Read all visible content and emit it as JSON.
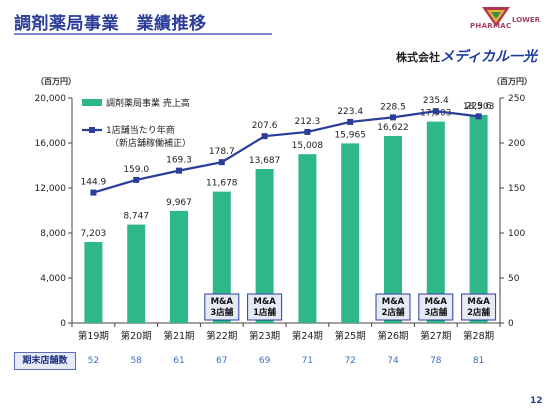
{
  "header": {
    "title": "調剤薬局事業　業績推移",
    "logo_word": "PHARMAC",
    "logo_word_right": "LOWER",
    "company_prefix": "株式会社",
    "company_name": "メディカル一光"
  },
  "units": {
    "left": "（百万円）",
    "right": "（百万円）"
  },
  "colors": {
    "bar": "#2eb887",
    "line": "#2b3d99",
    "title": "#2b3d99",
    "store_count": "#3c6fc0"
  },
  "chart_data": {
    "type": "bar",
    "categories": [
      "第19期",
      "第20期",
      "第21期",
      "第22期",
      "第23期",
      "第24期",
      "第25期",
      "第26期",
      "第27期",
      "第28期"
    ],
    "series": [
      {
        "name": "調剤薬局事業 売上高",
        "type": "bar",
        "axis": "left",
        "values": [
          7203,
          8747,
          9967,
          11678,
          13687,
          15008,
          15965,
          16622,
          17903,
          18503
        ]
      },
      {
        "name": "1店舗当たり年商",
        "name_sub": "（新店舗稼働補正）",
        "type": "line",
        "axis": "right",
        "values": [
          144.9,
          159.0,
          169.3,
          178.7,
          207.6,
          212.3,
          223.4,
          228.5,
          235.4,
          229.6
        ]
      }
    ],
    "bar_labels": [
      "7,203",
      "8,747",
      "9,967",
      "11,678",
      "13,687",
      "15,008",
      "15,965",
      "16,622",
      "17,903",
      "18,503"
    ],
    "line_labels": [
      "144.9",
      "159.0",
      "169.3",
      "178.7",
      "207.6",
      "212.3",
      "223.4",
      "228.5",
      "235.4",
      "229.6"
    ],
    "y_left": {
      "min": 0,
      "max": 20000,
      "ticks": [
        "0",
        "4,000",
        "8,000",
        "12,000",
        "16,000",
        "20,000"
      ]
    },
    "y_right": {
      "min": 0,
      "max": 250,
      "ticks": [
        "0",
        "50",
        "100",
        "150",
        "200",
        "250"
      ]
    },
    "grid": false,
    "legend": "top-left",
    "annotations": [
      {
        "category": "第22期",
        "lines": [
          "M&A",
          "3店舗"
        ]
      },
      {
        "category": "第23期",
        "lines": [
          "M&A",
          "1店舗"
        ]
      },
      {
        "category": "第26期",
        "lines": [
          "M&A",
          "2店舗"
        ]
      },
      {
        "category": "第27期",
        "lines": [
          "M&A",
          "3店舗"
        ]
      },
      {
        "category": "第28期",
        "lines": [
          "M&A",
          "2店舗"
        ]
      }
    ]
  },
  "stores": {
    "label": "期末店舗数",
    "values": [
      "52",
      "58",
      "61",
      "67",
      "69",
      "71",
      "72",
      "74",
      "78",
      "81"
    ]
  },
  "page_number": "12"
}
